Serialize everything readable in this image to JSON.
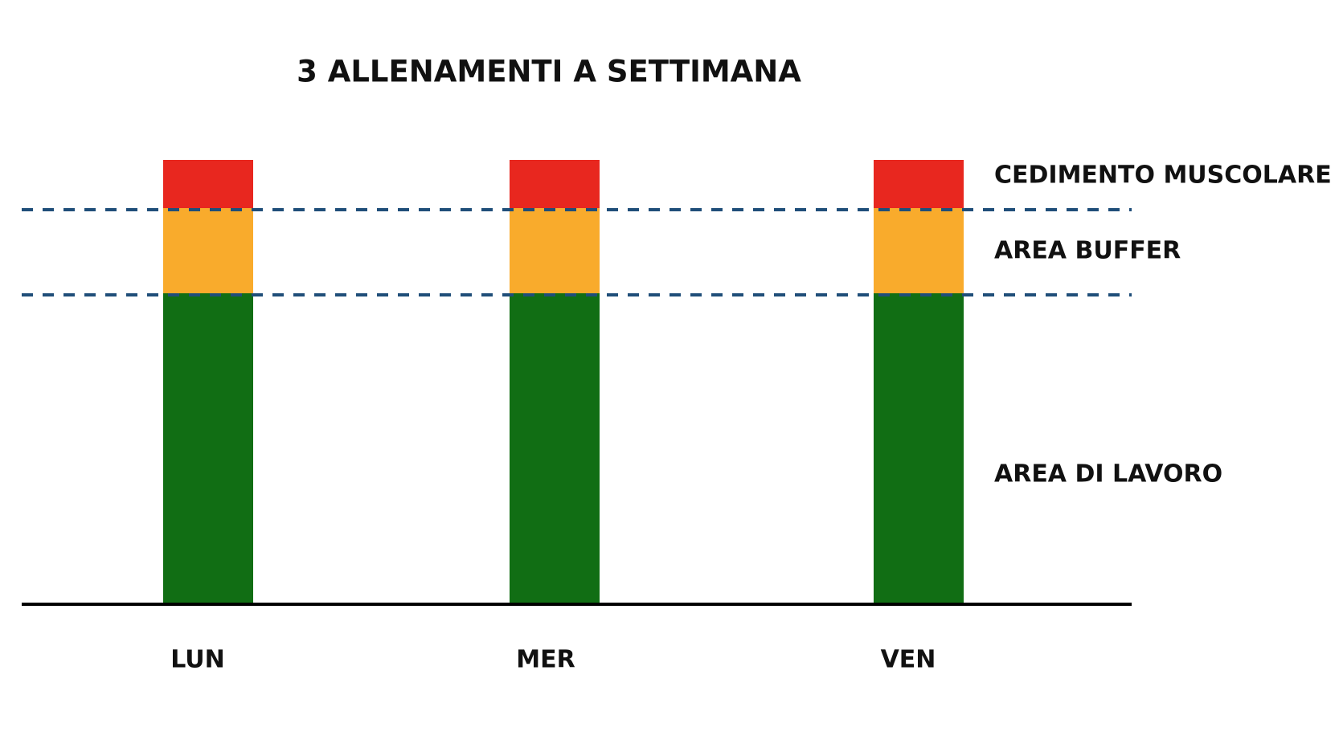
{
  "title": "3 ALLENAMENTI A SETTIMANA",
  "zones": [
    "CEDIMENTO MUSCOLARE",
    "AREA BUFFER",
    "AREA DI LAVORO"
  ],
  "days": [
    "LUN",
    "MER",
    "VEN"
  ]
}
